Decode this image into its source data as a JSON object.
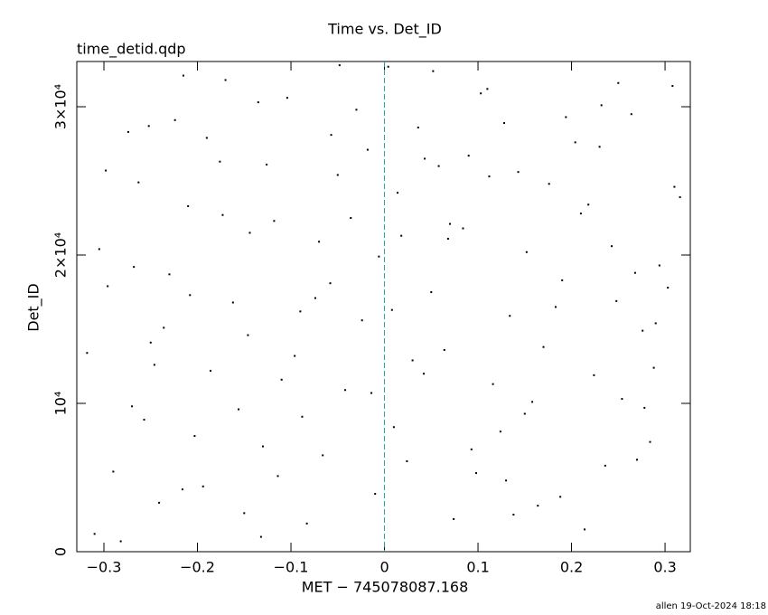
{
  "chart_data": {
    "type": "scatter",
    "title": "Time vs. Det_ID",
    "annotation": "time_detid.qdp",
    "footer": "allen 19-Oct-2024 18:18",
    "xlabel": "MET − 745078087.168",
    "ylabel": "Det_ID",
    "color": "#000000",
    "reference_x": 0,
    "reference_color": "#2aa0a0",
    "xlim": [
      -0.329,
      0.327
    ],
    "ylim": [
      0,
      33050
    ],
    "xticks": [
      {
        "value": -0.3,
        "label": "−0.3"
      },
      {
        "value": -0.2,
        "label": "−0.2"
      },
      {
        "value": -0.1,
        "label": "−0.1"
      },
      0,
      0.1,
      0.2,
      0.3
    ],
    "yticks": [
      0,
      {
        "value": 10000,
        "label": "10⁴"
      },
      {
        "value": 20000,
        "label": "2×10⁴"
      },
      {
        "value": 30000,
        "label": "3×10⁴"
      }
    ],
    "x": [
      -0.31,
      -0.29,
      -0.27,
      -0.25,
      -0.23,
      -0.21,
      -0.19,
      -0.17,
      -0.15,
      -0.13,
      -0.11,
      -0.09,
      -0.07,
      -0.05,
      -0.03,
      -0.01,
      0.01,
      0.03,
      0.05,
      0.07,
      0.09,
      0.11,
      0.13,
      0.15,
      0.17,
      0.19,
      0.21,
      0.23,
      0.25,
      0.27,
      0.29,
      0.31,
      -0.305,
      -0.282,
      -0.263,
      -0.241,
      -0.224,
      -0.203,
      -0.186,
      -0.162,
      -0.144,
      -0.126,
      -0.104,
      -0.083,
      -0.066,
      -0.042,
      -0.024,
      -0.006,
      0.014,
      0.036,
      0.052,
      0.074,
      0.093,
      0.116,
      0.134,
      0.152,
      0.176,
      0.194,
      0.214,
      0.236,
      0.254,
      0.276,
      0.294,
      0.316,
      -0.318,
      -0.296,
      -0.274,
      -0.257,
      -0.236,
      -0.215,
      -0.194,
      -0.173,
      -0.156,
      -0.135,
      -0.114,
      -0.096,
      -0.074,
      -0.057,
      -0.036,
      -0.014,
      0.004,
      0.024,
      0.043,
      0.064,
      0.084,
      0.103,
      0.124,
      0.143,
      0.164,
      0.183,
      0.204,
      0.224,
      0.243,
      0.264,
      0.284,
      0.303,
      -0.298,
      -0.268,
      -0.246,
      -0.216,
      -0.176,
      -0.146,
      -0.118,
      -0.088,
      -0.058,
      -0.018,
      0.008,
      0.042,
      0.068,
      0.098,
      0.128,
      0.158,
      0.188,
      0.218,
      0.248,
      0.278,
      0.308,
      -0.252,
      -0.132,
      -0.048,
      0.058,
      0.138,
      0.232,
      0.288,
      -0.208,
      0.018,
      0.112,
      0.268
    ],
    "values": [
      1200,
      5400,
      9800,
      14100,
      18700,
      23300,
      27900,
      31800,
      2600,
      7100,
      11600,
      16200,
      20900,
      25400,
      29800,
      3900,
      8400,
      12900,
      17500,
      22100,
      26700,
      31200,
      4800,
      9300,
      13800,
      18300,
      22800,
      27300,
      31600,
      6200,
      15400,
      24600,
      20400,
      700,
      24900,
      3300,
      29100,
      7800,
      12200,
      16800,
      21500,
      26100,
      30600,
      1900,
      6500,
      10900,
      15600,
      19900,
      24200,
      28600,
      32400,
      2200,
      6900,
      11300,
      15900,
      20200,
      24800,
      29300,
      1500,
      5800,
      10300,
      14900,
      19300,
      23900,
      13400,
      17900,
      28300,
      8900,
      15100,
      32100,
      4400,
      22700,
      9600,
      30300,
      5100,
      13200,
      17100,
      28100,
      22500,
      10700,
      32700,
      6100,
      26500,
      13600,
      21800,
      30900,
      8100,
      25600,
      3100,
      16500,
      27600,
      11900,
      20600,
      29500,
      7400,
      17800,
      25700,
      19200,
      12600,
      4200,
      26300,
      14600,
      22300,
      9100,
      18100,
      27100,
      16300,
      12000,
      21100,
      5300,
      28900,
      10100,
      3700,
      23400,
      16900,
      9700,
      31400,
      28700,
      1000,
      32800,
      26000,
      2500,
      30100,
      12400,
      17300,
      21300,
      25300,
      18800
    ]
  }
}
